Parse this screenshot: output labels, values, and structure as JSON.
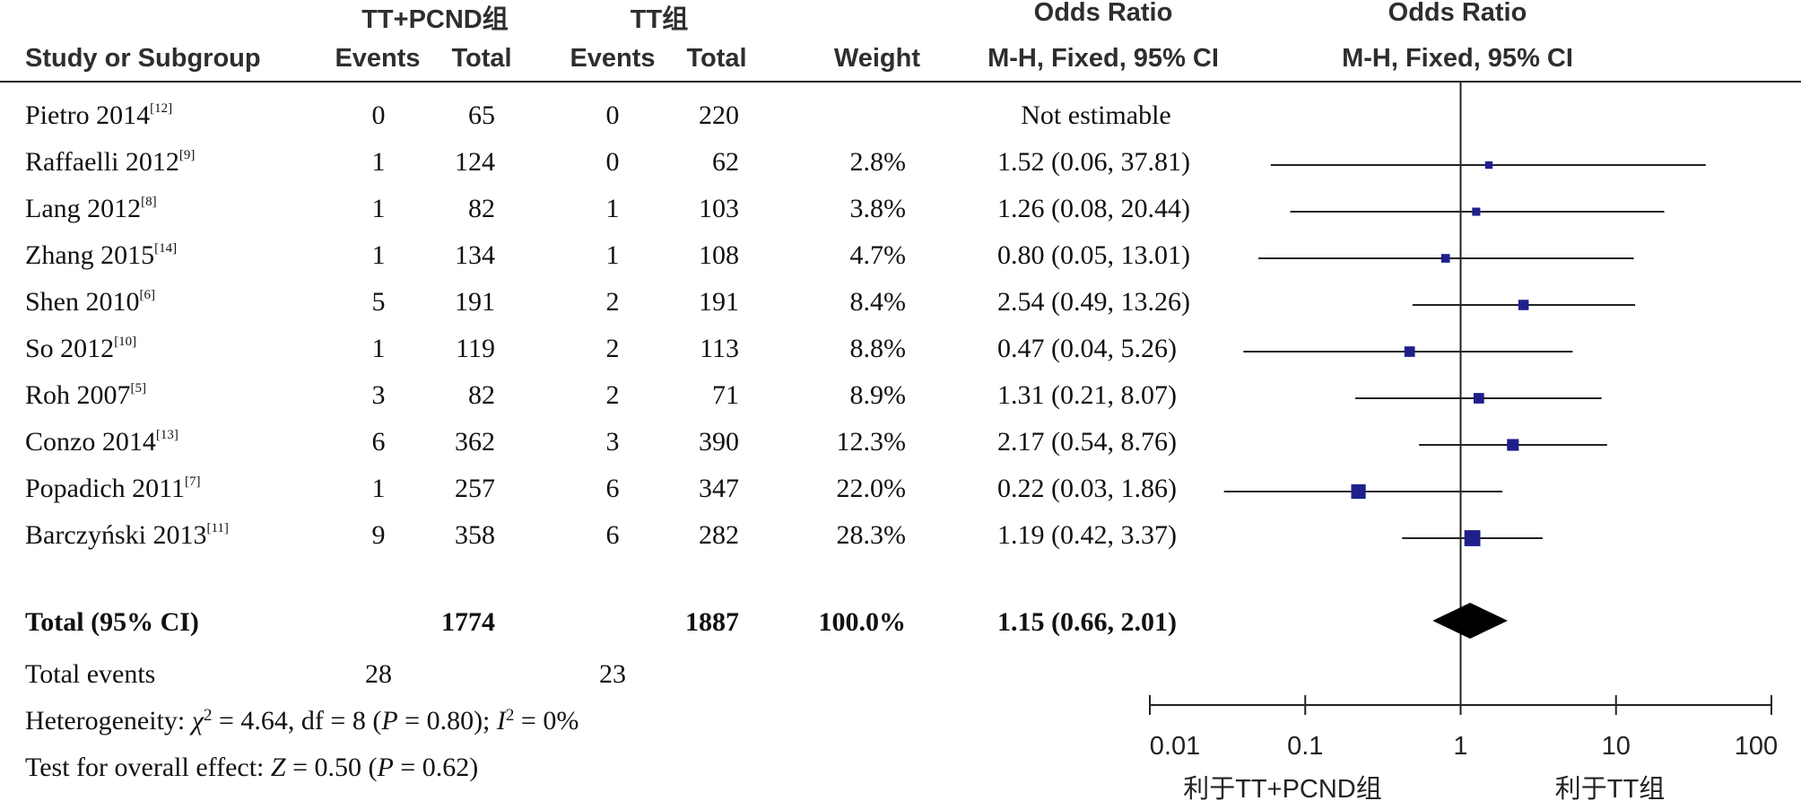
{
  "headers": {
    "group1": "TT+PCND组",
    "group2": "TT组",
    "or_title_1": "Odds Ratio",
    "or_title_2": "Odds Ratio",
    "study_col": "Study or Subgroup",
    "events1": "Events",
    "total1": "Total",
    "events2": "Events",
    "total2": "Total",
    "weight": "Weight",
    "method_1": "M-H, Fixed, 95% CI",
    "method_2": "M-H, Fixed, 95% CI"
  },
  "rows": [
    {
      "name": "Pietro 2014",
      "ref": "[12]",
      "e1": "0",
      "t1": "65",
      "e2": "0",
      "t2": "220",
      "weight": "",
      "ci": "Not estimable"
    },
    {
      "name": "Raffaelli 2012",
      "ref": "[9]",
      "e1": "1",
      "t1": "124",
      "e2": "0",
      "t2": "62",
      "weight": "2.8%",
      "ci": "1.52 (0.06, 37.81)"
    },
    {
      "name": "Lang 2012",
      "ref": "[8]",
      "e1": "1",
      "t1": "82",
      "e2": "1",
      "t2": "103",
      "weight": "3.8%",
      "ci": "1.26 (0.08, 20.44)"
    },
    {
      "name": "Zhang 2015",
      "ref": "[14]",
      "e1": "1",
      "t1": "134",
      "e2": "1",
      "t2": "108",
      "weight": "4.7%",
      "ci": "0.80 (0.05, 13.01)"
    },
    {
      "name": "Shen 2010",
      "ref": "[6]",
      "e1": "5",
      "t1": "191",
      "e2": "2",
      "t2": "191",
      "weight": "8.4%",
      "ci": "2.54 (0.49, 13.26)"
    },
    {
      "name": "So 2012",
      "ref": "[10]",
      "e1": "1",
      "t1": "119",
      "e2": "2",
      "t2": "113",
      "weight": "8.8%",
      "ci": "0.47 (0.04, 5.26)"
    },
    {
      "name": "Roh 2007",
      "ref": "[5]",
      "e1": "3",
      "t1": "82",
      "e2": "2",
      "t2": "71",
      "weight": "8.9%",
      "ci": "1.31 (0.21, 8.07)"
    },
    {
      "name": "Conzo 2014",
      "ref": "[13]",
      "e1": "6",
      "t1": "362",
      "e2": "3",
      "t2": "390",
      "weight": "12.3%",
      "ci": "2.17 (0.54, 8.76)"
    },
    {
      "name": "Popadich 2011",
      "ref": "[7]",
      "e1": "1",
      "t1": "257",
      "e2": "6",
      "t2": "347",
      "weight": "22.0%",
      "ci": "0.22 (0.03, 1.86)"
    },
    {
      "name": "Barczyński 2013",
      "ref": "[11]",
      "e1": "9",
      "t1": "358",
      "e2": "6",
      "t2": "282",
      "weight": "28.3%",
      "ci": "1.19 (0.42, 3.37)"
    }
  ],
  "total": {
    "label": "Total (95% CI)",
    "t1": "1774",
    "t2": "1887",
    "weight": "100.0%",
    "ci": "1.15 (0.66, 2.01)"
  },
  "total_events": {
    "label": "Total events",
    "e1": "28",
    "e2": "23"
  },
  "heterogeneity": {
    "label": "Heterogeneity:",
    "chi2": "4.64",
    "df": "8",
    "p": "0.80",
    "i2": "0%"
  },
  "overall_effect": {
    "label": "Test for overall effect:",
    "z": "0.50",
    "p": "0.62"
  },
  "colors": {
    "marker": "#1f1f8c",
    "line": "#222222",
    "diamond": "#000000"
  },
  "chart_data": {
    "type": "forest",
    "x_scale": "log",
    "xlim": [
      0.01,
      100
    ],
    "ticks": [
      "0.01",
      "0.1",
      "1",
      "10",
      "100"
    ],
    "tick_values": [
      0.01,
      0.1,
      1,
      10,
      100
    ],
    "left_label": "利于TT+PCND组",
    "right_label": "利于TT组",
    "reference_line": 1,
    "studies": [
      {
        "name": "Pietro 2014",
        "or": null,
        "lo": null,
        "hi": null,
        "weight": 0
      },
      {
        "name": "Raffaelli 2012",
        "or": 1.52,
        "lo": 0.06,
        "hi": 37.81,
        "weight": 2.8
      },
      {
        "name": "Lang 2012",
        "or": 1.26,
        "lo": 0.08,
        "hi": 20.44,
        "weight": 3.8
      },
      {
        "name": "Zhang 2015",
        "or": 0.8,
        "lo": 0.05,
        "hi": 13.01,
        "weight": 4.7
      },
      {
        "name": "Shen 2010",
        "or": 2.54,
        "lo": 0.49,
        "hi": 13.26,
        "weight": 8.4
      },
      {
        "name": "So 2012",
        "or": 0.47,
        "lo": 0.04,
        "hi": 5.26,
        "weight": 8.8
      },
      {
        "name": "Roh 2007",
        "or": 1.31,
        "lo": 0.21,
        "hi": 8.07,
        "weight": 8.9
      },
      {
        "name": "Conzo 2014",
        "or": 2.17,
        "lo": 0.54,
        "hi": 8.76,
        "weight": 12.3
      },
      {
        "name": "Popadich 2011",
        "or": 0.22,
        "lo": 0.03,
        "hi": 1.86,
        "weight": 22.0
      },
      {
        "name": "Barczyński 2013",
        "or": 1.19,
        "lo": 0.42,
        "hi": 3.37,
        "weight": 28.3
      }
    ],
    "pooled": {
      "or": 1.15,
      "lo": 0.66,
      "hi": 2.01
    }
  }
}
